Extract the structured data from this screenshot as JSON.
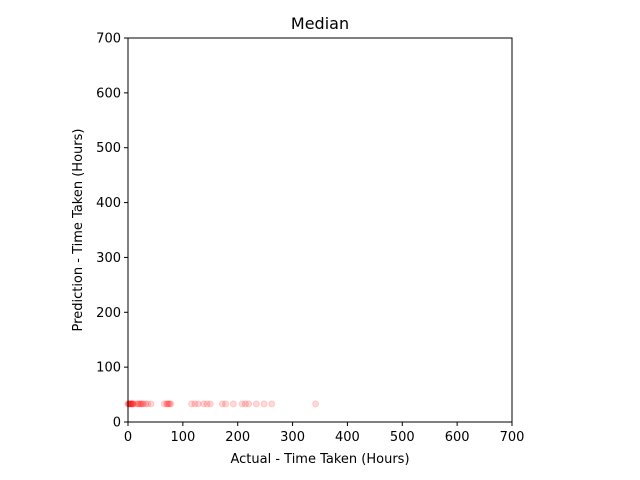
{
  "chart_data": {
    "type": "scatter",
    "title": "Median",
    "xlabel": "Actual - Time Taken (Hours)",
    "ylabel": "Prediction - Time Taken (Hours)",
    "xlim": [
      0,
      700
    ],
    "ylim": [
      0,
      700
    ],
    "xticks": [
      0,
      100,
      200,
      300,
      400,
      500,
      600,
      700
    ],
    "yticks": [
      0,
      100,
      200,
      300,
      400,
      500,
      600,
      700
    ],
    "grid": false,
    "marker_color": "#ff0000",
    "marker_alpha": 0.15,
    "series": [
      {
        "x": [
          0,
          1,
          2,
          3,
          4,
          5,
          6,
          7,
          8,
          9,
          10,
          15,
          18,
          20,
          22,
          24,
          26,
          28,
          32,
          36,
          42,
          66,
          70,
          72,
          74,
          76,
          78,
          116,
          122,
          128,
          138,
          144,
          150,
          172,
          178,
          192,
          208,
          214,
          220,
          234,
          248,
          262,
          342
        ],
        "y": [
          33,
          33,
          33,
          33,
          33,
          33,
          33,
          33,
          33,
          33,
          33,
          33,
          33,
          33,
          33,
          33,
          33,
          33,
          33,
          33,
          33,
          33,
          33,
          33,
          33,
          33,
          33,
          33,
          33,
          33,
          33,
          33,
          33,
          33,
          33,
          33,
          33,
          33,
          33,
          33,
          33,
          33,
          33
        ]
      }
    ]
  }
}
